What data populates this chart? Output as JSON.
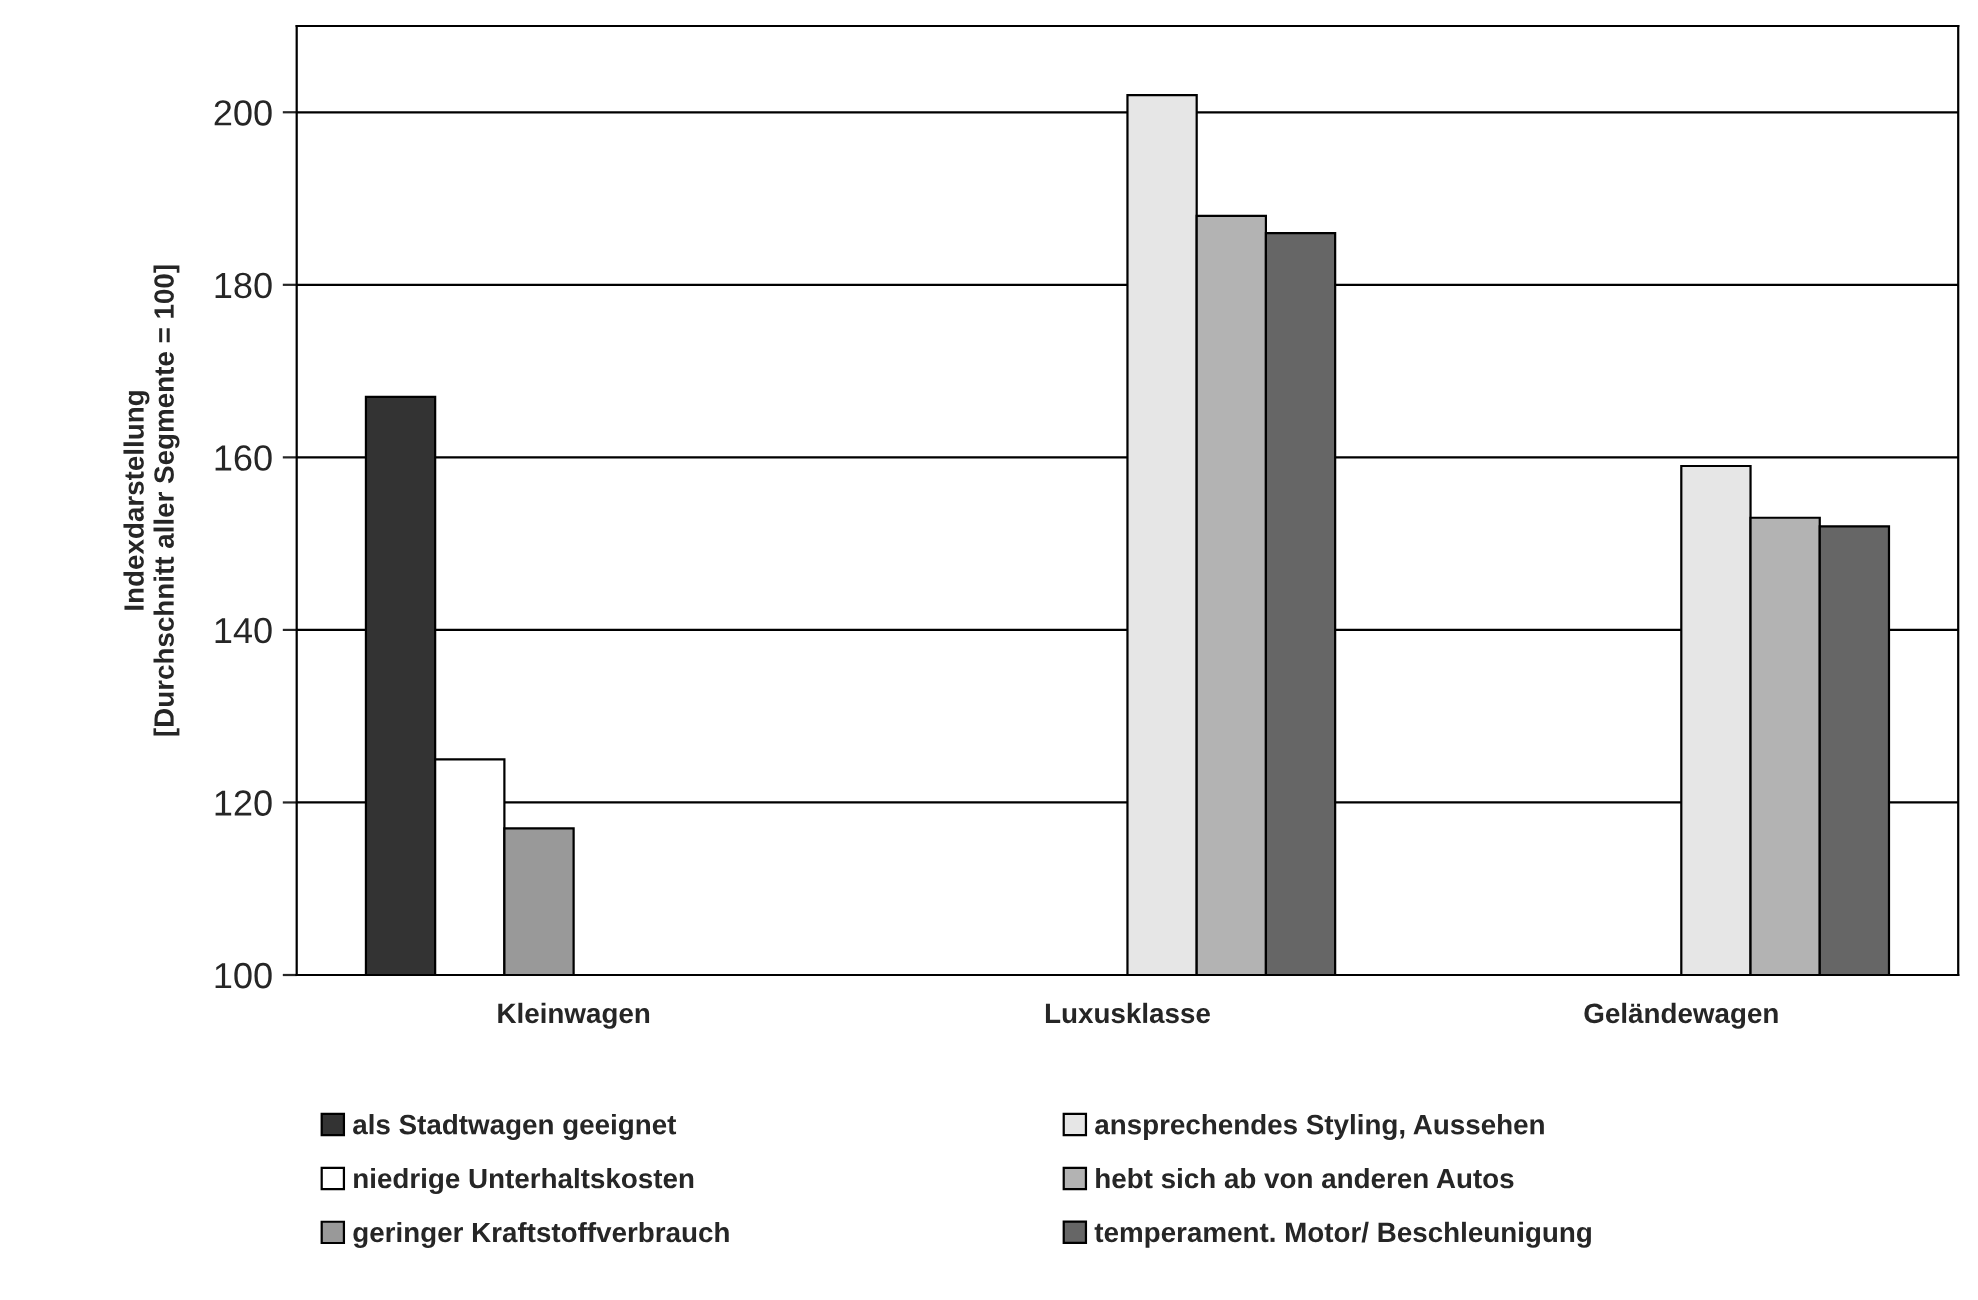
{
  "chart_data": {
    "type": "bar",
    "ylabel": "Indexdarstellung\n[Durchschnitt aller Segmente = 100]",
    "categories": [
      "Kleinwagen",
      "Luxusklasse",
      "Geländewagen"
    ],
    "series": [
      {
        "name": "als Stadtwagen geeignet",
        "color": "#333333",
        "values": [
          167,
          null,
          null
        ]
      },
      {
        "name": "niedrige Unterhaltskosten",
        "color": "#ffffff",
        "values": [
          125,
          null,
          null
        ]
      },
      {
        "name": "geringer Kraftstoffverbrauch",
        "color": "#999999",
        "values": [
          117,
          null,
          null
        ]
      },
      {
        "name": "ansprechendes Styling, Aussehen",
        "color": "#e6e6e6",
        "values": [
          null,
          202,
          159
        ]
      },
      {
        "name": "hebt sich ab von anderen Autos",
        "color": "#b3b3b3",
        "values": [
          null,
          188,
          153
        ]
      },
      {
        "name": "temperament. Motor/ Beschleunigung",
        "color": "#666666",
        "values": [
          null,
          186,
          152
        ]
      }
    ],
    "ylim": [
      100,
      210
    ],
    "yticks": [
      100,
      120,
      140,
      160,
      180,
      200
    ],
    "grid": "y",
    "legend": "bottom"
  }
}
